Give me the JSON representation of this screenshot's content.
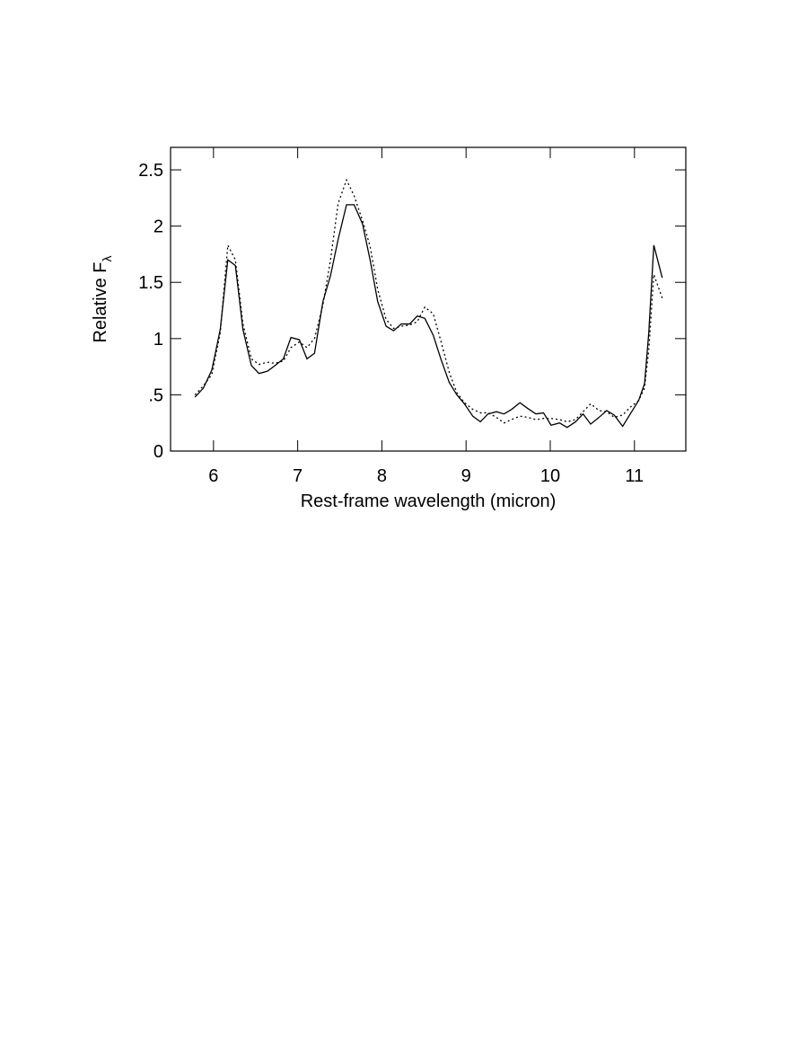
{
  "chart_data": {
    "type": "line",
    "xlabel": "Rest-frame wavelength (micron)",
    "ylabel": "Relative Fλ",
    "xlim": [
      5.49,
      11.61
    ],
    "ylim": [
      0,
      2.7
    ],
    "xticks": [
      6,
      7,
      8,
      9,
      10,
      11
    ],
    "yticks": [
      0,
      {
        "value": 0.5,
        "label": ".5"
      },
      1,
      1.5,
      2,
      2.5
    ],
    "x": [
      5.78,
      5.88,
      5.98,
      6.08,
      6.17,
      6.26,
      6.35,
      6.45,
      6.54,
      6.64,
      6.73,
      6.83,
      6.92,
      7.02,
      7.11,
      7.2,
      7.3,
      7.39,
      7.48,
      7.58,
      7.67,
      7.77,
      7.86,
      7.95,
      8.05,
      8.14,
      8.23,
      8.33,
      8.42,
      8.51,
      8.61,
      8.7,
      8.8,
      8.89,
      8.98,
      9.08,
      9.17,
      9.26,
      9.36,
      9.45,
      9.54,
      9.64,
      9.73,
      9.83,
      9.92,
      10.01,
      10.11,
      10.2,
      10.3,
      10.39,
      10.48,
      10.58,
      10.67,
      10.76,
      10.86,
      10.95,
      11.05,
      11.12,
      11.17,
      11.23,
      11.33
    ],
    "series": [
      {
        "color": "#000000",
        "linestyle": "solid",
        "values": [
          0.48,
          0.56,
          0.72,
          1.08,
          1.7,
          1.65,
          1.08,
          0.76,
          0.69,
          0.71,
          0.76,
          0.82,
          1.01,
          0.99,
          0.82,
          0.87,
          1.33,
          1.56,
          1.88,
          2.19,
          2.19,
          2.02,
          1.7,
          1.33,
          1.11,
          1.07,
          1.13,
          1.13,
          1.2,
          1.18,
          1.03,
          0.82,
          0.61,
          0.5,
          0.42,
          0.31,
          0.26,
          0.33,
          0.35,
          0.33,
          0.37,
          0.43,
          0.38,
          0.33,
          0.34,
          0.23,
          0.25,
          0.21,
          0.26,
          0.33,
          0.24,
          0.3,
          0.36,
          0.32,
          0.22,
          0.33,
          0.45,
          0.6,
          1.05,
          1.83,
          1.54
        ]
      },
      {
        "color": "#000000",
        "linestyle": "dotted",
        "values": [
          0.5,
          0.58,
          0.68,
          1.05,
          1.83,
          1.7,
          1.13,
          0.82,
          0.77,
          0.79,
          0.78,
          0.8,
          0.92,
          0.97,
          0.92,
          1.0,
          1.3,
          1.7,
          2.2,
          2.41,
          2.27,
          2.05,
          1.82,
          1.44,
          1.17,
          1.09,
          1.11,
          1.12,
          1.15,
          1.28,
          1.22,
          0.98,
          0.7,
          0.52,
          0.43,
          0.37,
          0.34,
          0.34,
          0.3,
          0.25,
          0.28,
          0.31,
          0.3,
          0.28,
          0.29,
          0.29,
          0.28,
          0.26,
          0.28,
          0.35,
          0.42,
          0.36,
          0.35,
          0.3,
          0.32,
          0.39,
          0.45,
          0.56,
          0.9,
          1.57,
          1.36
        ]
      }
    ]
  }
}
